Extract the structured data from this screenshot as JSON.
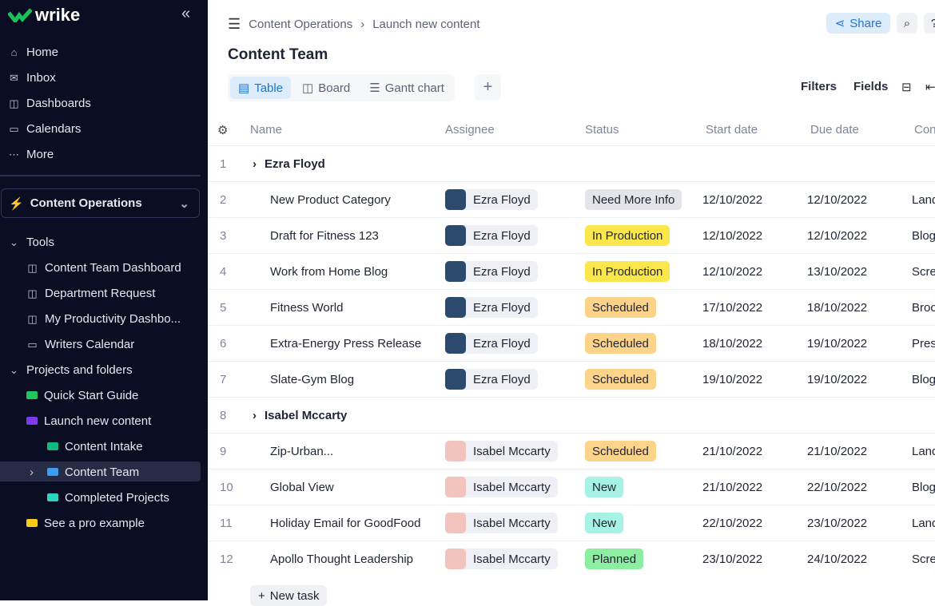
{
  "sidebar": {
    "logo": "wrike",
    "nav": [
      {
        "label": "Home",
        "icon": "home-icon"
      },
      {
        "label": "Inbox",
        "icon": "inbox-icon"
      },
      {
        "label": "Dashboards",
        "icon": "dashboard-icon"
      },
      {
        "label": "Calendars",
        "icon": "calendar-icon"
      },
      {
        "label": "More",
        "icon": "more-icon"
      }
    ],
    "space": "Content Operations",
    "tree": [
      {
        "label": "Tools",
        "level": 0,
        "type": "caret"
      },
      {
        "label": "Content Team Dashboard",
        "level": 1,
        "type": "dashboard"
      },
      {
        "label": "Department Request",
        "level": 1,
        "type": "dashboard"
      },
      {
        "label": "My Productivity Dashbo...",
        "level": 1,
        "type": "dashboard"
      },
      {
        "label": "Writers Calendar",
        "level": 1,
        "type": "calendar"
      },
      {
        "label": "Projects and folders",
        "level": 0,
        "type": "caret"
      },
      {
        "label": "Quick Start Guide",
        "level": 1,
        "type": "folder",
        "color": "#22c55e"
      },
      {
        "label": "Launch new content",
        "level": 1,
        "type": "folder",
        "color": "#7c3aed"
      },
      {
        "label": "Content Intake",
        "level": 2,
        "type": "folder",
        "color": "#10b981"
      },
      {
        "label": "Content Team",
        "level": 2,
        "type": "folder",
        "color": "#3b9cf0",
        "selected": true
      },
      {
        "label": "Completed Projects",
        "level": 2,
        "type": "folder",
        "color": "#2dd4bf"
      },
      {
        "label": "See a pro example",
        "level": 1,
        "type": "folder",
        "color": "#facc15"
      }
    ]
  },
  "header": {
    "breadcrumb": [
      "Content Operations",
      "Launch new content"
    ],
    "share": "Share",
    "title": "Content Team",
    "views": [
      "Table",
      "Board",
      "Gantt chart"
    ],
    "filters": "Filters",
    "fields": "Fields"
  },
  "table": {
    "columns": [
      "Name",
      "Assignee",
      "Status",
      "Start date",
      "Due date",
      "Con"
    ],
    "rows": [
      {
        "n": "1",
        "group": "Ezra Floyd"
      },
      {
        "n": "2",
        "name": "New Product Category",
        "assignee": "Ezra Floyd",
        "status": "Need More Info",
        "start": "12/10/2022",
        "due": "12/10/2022",
        "type": "Land"
      },
      {
        "n": "3",
        "name": "Draft for Fitness 123",
        "assignee": "Ezra Floyd",
        "status": "In Production",
        "start": "12/10/2022",
        "due": "12/10/2022",
        "type": "Blog"
      },
      {
        "n": "4",
        "name": "Work from Home Blog",
        "assignee": "Ezra Floyd",
        "status": "In Production",
        "start": "12/10/2022",
        "due": "13/10/2022",
        "type": "Scre"
      },
      {
        "n": "5",
        "name": "Fitness World",
        "assignee": "Ezra Floyd",
        "status": "Scheduled",
        "start": "17/10/2022",
        "due": "18/10/2022",
        "type": "Broc"
      },
      {
        "n": "6",
        "name": "Extra-Energy Press Release",
        "assignee": "Ezra Floyd",
        "status": "Scheduled",
        "start": "18/10/2022",
        "due": "19/10/2022",
        "type": "Pres"
      },
      {
        "n": "7",
        "name": "Slate-Gym Blog",
        "assignee": "Ezra Floyd",
        "status": "Scheduled",
        "start": "19/10/2022",
        "due": "19/10/2022",
        "type": "Blog"
      },
      {
        "n": "8",
        "group": "Isabel Mccarty"
      },
      {
        "n": "9",
        "name": "Zip-Urban...",
        "assignee": "Isabel Mccarty",
        "status": "Scheduled",
        "start": "21/10/2022",
        "due": "21/10/2022",
        "type": "Land"
      },
      {
        "n": "10",
        "name": "Global View",
        "assignee": "Isabel Mccarty",
        "status": "New",
        "start": "21/10/2022",
        "due": "22/10/2022",
        "type": "Blog"
      },
      {
        "n": "11",
        "name": "Holiday Email for GoodFood",
        "assignee": "Isabel Mccarty",
        "status": "New",
        "start": "22/10/2022",
        "due": "23/10/2022",
        "type": "Land"
      },
      {
        "n": "12",
        "name": "Apollo Thought Leadership",
        "assignee": "Isabel Mccarty",
        "status": "Planned",
        "start": "23/10/2022",
        "due": "24/10/2022",
        "type": "Scre"
      }
    ],
    "new_task": "New task"
  },
  "status_colors": {
    "Need More Info": "#e3e5ea",
    "In Production": "#fbe74c",
    "Scheduled": "#fcd389",
    "New": "#a6f2e4",
    "Planned": "#8ceea0"
  },
  "avatar_colors": {
    "Ezra Floyd": "#2b4a6e",
    "Isabel Mccarty": "#f2c4bd"
  }
}
